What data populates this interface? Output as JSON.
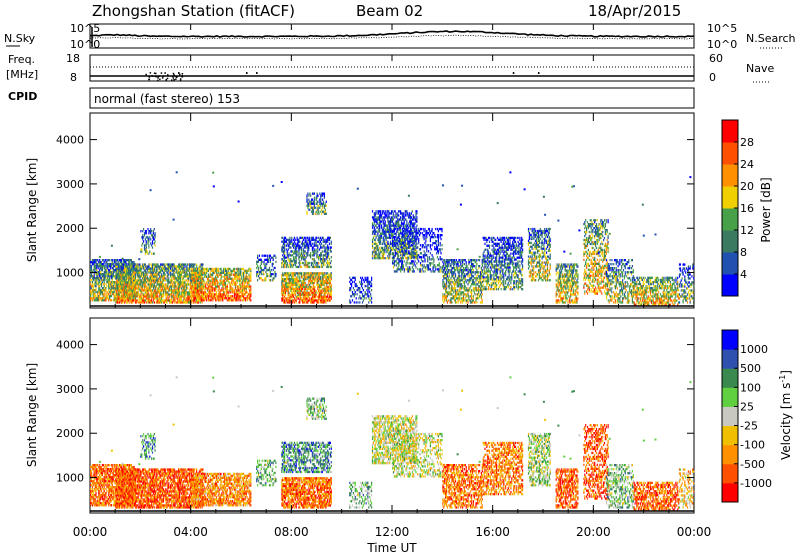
{
  "header": {
    "station": "Zhongshan Station (fitACF)",
    "beam": "Beam 02",
    "date": "18/Apr/2015"
  },
  "panels": {
    "nsky": {
      "left_label": "N.Sky",
      "right_label": "N.Search",
      "left_ticks": [
        "10^5",
        "10^0"
      ],
      "right_ticks": [
        "10^5",
        "10^0"
      ]
    },
    "freq": {
      "left_label_1": "Freq.",
      "left_label_2": "[MHz]",
      "right_label": "Nave",
      "left_ticks": [
        "18",
        "8"
      ],
      "right_ticks": [
        "60",
        "0"
      ]
    },
    "cpid": {
      "label": "CPID",
      "mode": "normal (fast stereo) 153"
    }
  },
  "colors": {
    "power_scale": [
      "#0000ff",
      "#2050b0",
      "#3a7a60",
      "#48a048",
      "#f0d000",
      "#ff9000",
      "#ff5000",
      "#ff0000"
    ],
    "velocity_scale": [
      "#ff0000",
      "#ff5000",
      "#ff9000",
      "#f0c000",
      "#c8c8c0",
      "#60d040",
      "#3a8a50",
      "#3050b0",
      "#0000ff"
    ]
  },
  "chart_data": [
    {
      "type": "heatmap",
      "name": "power",
      "ylabel": "Slant Range [km]",
      "yticks": [
        1000,
        2000,
        3000,
        4000
      ],
      "ylim": [
        200,
        4600
      ],
      "xlim_hours": [
        0,
        24
      ],
      "colorbar_label": "Power [dB]",
      "colorbar_ticks": [
        4,
        8,
        12,
        16,
        20,
        24,
        28
      ],
      "colorbar_range": [
        0,
        32
      ]
    },
    {
      "type": "heatmap",
      "name": "velocity",
      "ylabel": "Slant Range [km]",
      "yticks": [
        1000,
        2000,
        3000,
        4000
      ],
      "ylim": [
        200,
        4600
      ],
      "xlim_hours": [
        0,
        24
      ],
      "colorbar_label": "Velocity [m s",
      "colorbar_label_sup": "-1",
      "colorbar_ticks": [
        "1000",
        "500",
        "100",
        "25",
        "-25",
        "-100",
        "-500",
        "-1000"
      ]
    }
  ],
  "xaxis": {
    "ticks": [
      "00:00",
      "04:00",
      "08:00",
      "12:00",
      "16:00",
      "20:00",
      "00:00"
    ],
    "label": "Time UT"
  }
}
